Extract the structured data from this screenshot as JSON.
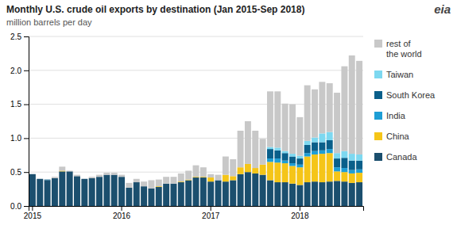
{
  "chart_data": {
    "type": "bar",
    "stacked": true,
    "title": "Monthly U.S. crude oil exports by destination (Jan 2015-Sep 2018)",
    "subtitle": "million barrels per day",
    "annotations": [
      {
        "text": "eia"
      }
    ],
    "categories": [
      "2015",
      null,
      null,
      null,
      null,
      null,
      null,
      null,
      null,
      null,
      null,
      null,
      "2016",
      null,
      null,
      null,
      null,
      null,
      null,
      null,
      null,
      null,
      null,
      null,
      "2017",
      null,
      null,
      null,
      null,
      null,
      null,
      null,
      null,
      null,
      null,
      null,
      "2018",
      null,
      null,
      null,
      null,
      null,
      null,
      null,
      null
    ],
    "series": [
      {
        "name": "Canada",
        "color": "#1b4f6e",
        "values": [
          0.47,
          0.4,
          0.38,
          0.41,
          0.51,
          0.51,
          0.44,
          0.4,
          0.41,
          0.43,
          0.46,
          0.46,
          0.43,
          0.27,
          0.35,
          0.29,
          0.26,
          0.28,
          0.33,
          0.33,
          0.35,
          0.38,
          0.42,
          0.42,
          0.36,
          0.38,
          0.36,
          0.38,
          0.47,
          0.5,
          0.48,
          0.46,
          0.38,
          0.35,
          0.35,
          0.33,
          0.31,
          0.35,
          0.36,
          0.35,
          0.36,
          0.37,
          0.36,
          0.34,
          0.35
        ]
      },
      {
        "name": "China",
        "color": "#f5c518",
        "values": [
          0.0,
          0.0,
          0.0,
          0.0,
          0.01,
          0.0,
          0.0,
          0.0,
          0.0,
          0.0,
          0.0,
          0.0,
          0.0,
          0.0,
          0.0,
          0.0,
          0.0,
          0.01,
          0.0,
          0.0,
          0.01,
          0.01,
          0.01,
          0.01,
          0.06,
          0.0,
          0.1,
          0.06,
          0.1,
          0.12,
          0.08,
          0.15,
          0.27,
          0.29,
          0.28,
          0.26,
          0.26,
          0.38,
          0.4,
          0.42,
          0.42,
          0.14,
          0.14,
          0.14,
          0.14
        ]
      },
      {
        "name": "India",
        "color": "#1e9ed5",
        "values": [
          0.0,
          0.0,
          0.0,
          0.0,
          0.0,
          0.0,
          0.0,
          0.0,
          0.0,
          0.0,
          0.0,
          0.0,
          0.0,
          0.0,
          0.0,
          0.0,
          0.0,
          0.0,
          0.0,
          0.0,
          0.0,
          0.0,
          0.0,
          0.0,
          0.0,
          0.0,
          0.0,
          0.0,
          0.0,
          0.0,
          0.0,
          0.0,
          0.05,
          0.06,
          0.04,
          0.04,
          0.04,
          0.05,
          0.05,
          0.05,
          0.06,
          0.06,
          0.06,
          0.05,
          0.05
        ]
      },
      {
        "name": "South Korea",
        "color": "#0a5f8a",
        "values": [
          0.0,
          0.0,
          0.01,
          0.0,
          0.0,
          0.0,
          0.0,
          0.0,
          0.0,
          0.0,
          0.0,
          0.0,
          0.0,
          0.0,
          0.0,
          0.0,
          0.0,
          0.0,
          0.0,
          0.0,
          0.0,
          0.0,
          0.0,
          0.0,
          0.0,
          0.0,
          0.0,
          0.0,
          0.0,
          0.0,
          0.0,
          0.0,
          0.14,
          0.12,
          0.11,
          0.1,
          0.09,
          0.12,
          0.13,
          0.12,
          0.13,
          0.13,
          0.15,
          0.14,
          0.13
        ]
      },
      {
        "name": "Taiwan",
        "color": "#7dd8f0",
        "values": [
          0.0,
          0.0,
          0.0,
          0.0,
          0.0,
          0.0,
          0.0,
          0.0,
          0.0,
          0.0,
          0.0,
          0.0,
          0.0,
          0.0,
          0.0,
          0.0,
          0.0,
          0.0,
          0.0,
          0.0,
          0.0,
          0.0,
          0.0,
          0.0,
          0.0,
          0.0,
          0.0,
          0.0,
          0.0,
          0.0,
          0.0,
          0.0,
          0.03,
          0.04,
          0.03,
          0.04,
          0.04,
          0.06,
          0.07,
          0.13,
          0.12,
          0.08,
          0.1,
          0.1,
          0.09
        ]
      },
      {
        "name": "rest of\nthe world",
        "color": "#c8c8c8",
        "values": [
          0.0,
          0.0,
          0.0,
          0.02,
          0.06,
          0.01,
          0.02,
          0.0,
          0.02,
          0.03,
          0.03,
          0.03,
          0.03,
          0.07,
          0.05,
          0.07,
          0.12,
          0.1,
          0.1,
          0.1,
          0.12,
          0.13,
          0.17,
          0.14,
          0.05,
          0.08,
          0.27,
          0.25,
          0.54,
          0.63,
          0.55,
          0.38,
          0.82,
          0.83,
          0.7,
          0.73,
          0.57,
          0.82,
          0.71,
          0.76,
          0.72,
          0.89,
          1.25,
          1.45,
          1.38
        ]
      }
    ],
    "ylim": [
      0,
      2.5
    ],
    "yticks": [
      {
        "value": 0,
        "label": "0.0"
      },
      0.5,
      {
        "value": 1,
        "label": "1.0"
      },
      1.5,
      {
        "value": 2,
        "label": "2.0"
      },
      2.5
    ],
    "grid": true
  }
}
